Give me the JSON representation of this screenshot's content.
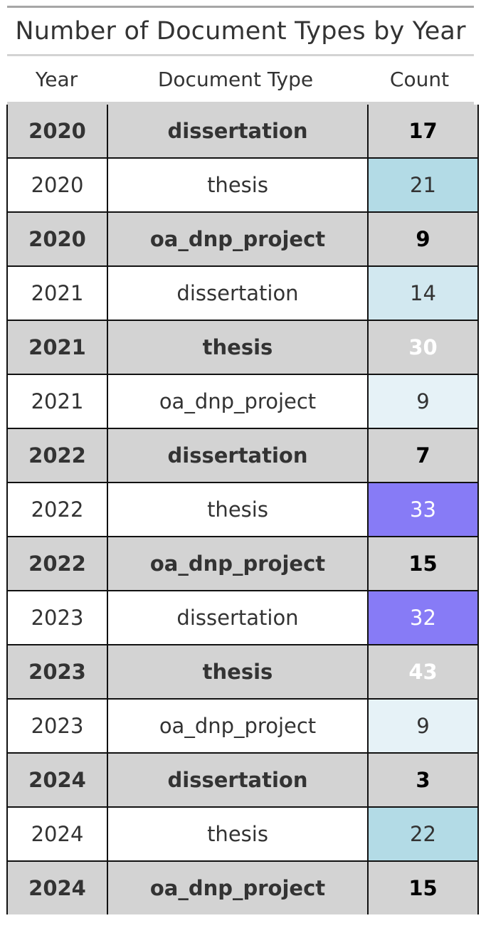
{
  "title": "Number of Document Types by Year",
  "headers": {
    "year": "Year",
    "type": "Document Type",
    "count": "Count"
  },
  "chart_data": {
    "type": "table",
    "title": "Number of Document Types by Year",
    "columns": [
      "Year",
      "Document Type",
      "Count"
    ],
    "rows": [
      {
        "year": "2020",
        "type": "dissertation",
        "count": "17",
        "bg": "#d3d3d3",
        "fg": "#000000"
      },
      {
        "year": "2020",
        "type": "thesis",
        "count": "21",
        "bg": "#b3dbe6",
        "fg": "#333333"
      },
      {
        "year": "2020",
        "type": "oa_dnp_project",
        "count": "9",
        "bg": "#d3d3d3",
        "fg": "#000000"
      },
      {
        "year": "2021",
        "type": "dissertation",
        "count": "14",
        "bg": "#d2e8f0",
        "fg": "#333333"
      },
      {
        "year": "2021",
        "type": "thesis",
        "count": "30",
        "bg": "#d3d3d3",
        "fg": "#ffffff"
      },
      {
        "year": "2021",
        "type": "oa_dnp_project",
        "count": "9",
        "bg": "#e6f2f7",
        "fg": "#333333"
      },
      {
        "year": "2022",
        "type": "dissertation",
        "count": "7",
        "bg": "#d3d3d3",
        "fg": "#000000"
      },
      {
        "year": "2022",
        "type": "thesis",
        "count": "33",
        "bg": "#877bf6",
        "fg": "#ffffff"
      },
      {
        "year": "2022",
        "type": "oa_dnp_project",
        "count": "15",
        "bg": "#d3d3d3",
        "fg": "#000000"
      },
      {
        "year": "2023",
        "type": "dissertation",
        "count": "32",
        "bg": "#877bf6",
        "fg": "#ffffff"
      },
      {
        "year": "2023",
        "type": "thesis",
        "count": "43",
        "bg": "#d3d3d3",
        "fg": "#ffffff"
      },
      {
        "year": "2023",
        "type": "oa_dnp_project",
        "count": "9",
        "bg": "#e6f2f7",
        "fg": "#333333"
      },
      {
        "year": "2024",
        "type": "dissertation",
        "count": "3",
        "bg": "#d3d3d3",
        "fg": "#000000"
      },
      {
        "year": "2024",
        "type": "thesis",
        "count": "22",
        "bg": "#b3dbe6",
        "fg": "#333333"
      },
      {
        "year": "2024",
        "type": "oa_dnp_project",
        "count": "15",
        "bg": "#d3d3d3",
        "fg": "#000000"
      }
    ]
  }
}
